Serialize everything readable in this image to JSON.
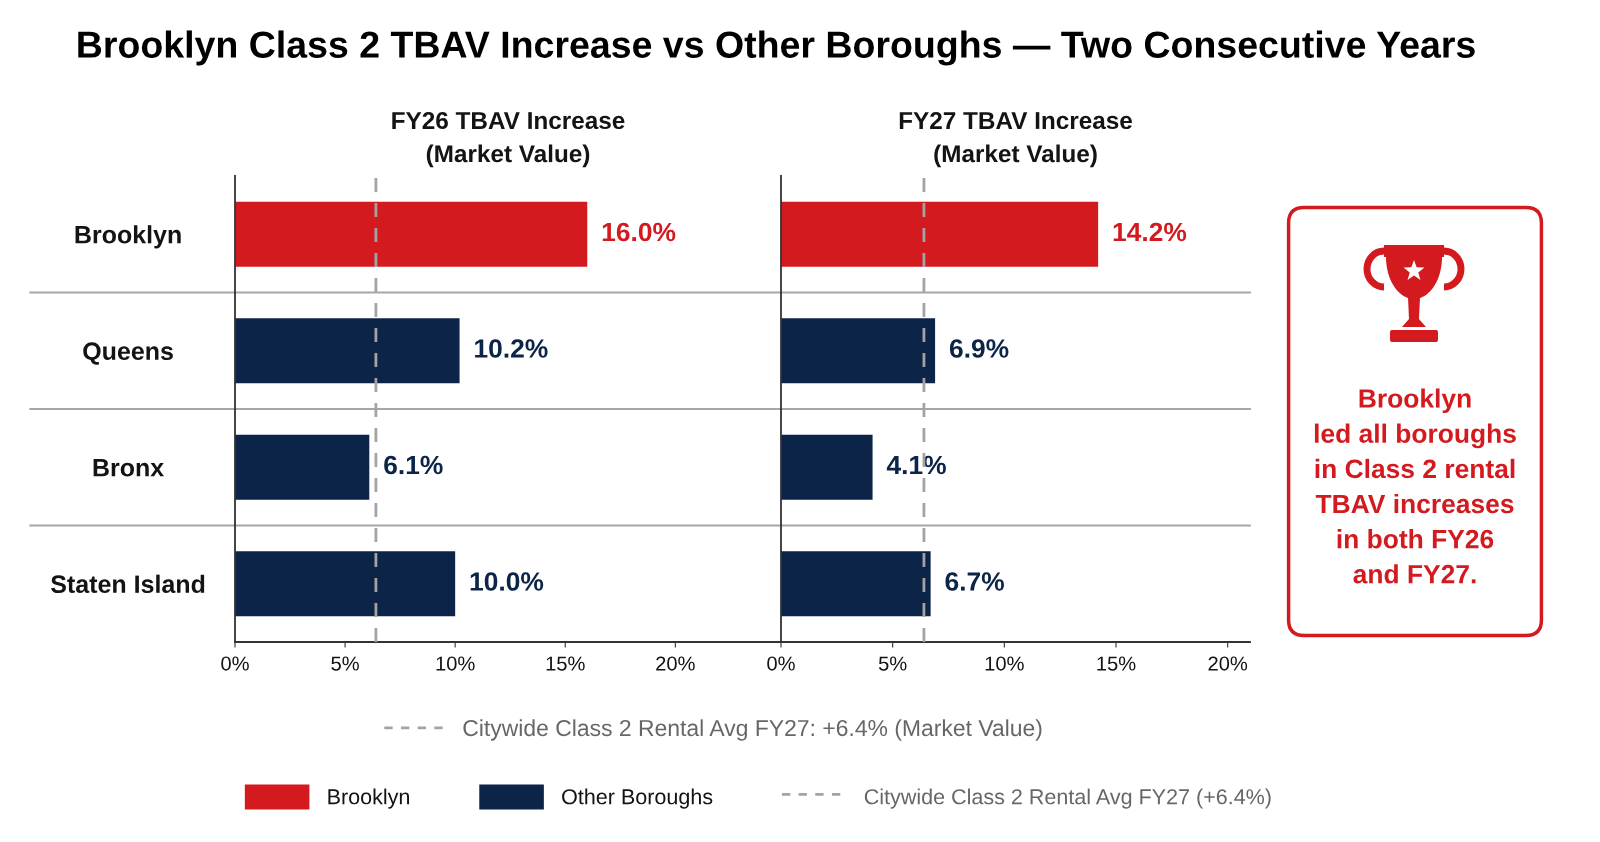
{
  "chart_data": [
    {
      "type": "bar",
      "orientation": "horizontal",
      "title": "Brooklyn Class 2 TBAV Increase vs Other Boroughs — Two Consecutive Years",
      "subtitle": "FY26 TBAV Increase\n(Market Value)",
      "categories": [
        "Brooklyn",
        "Queens",
        "Bronx",
        "Staten Island"
      ],
      "series": [
        {
          "name": "Brooklyn",
          "color": "#d31a1f",
          "values": [
            16.0,
            null,
            null,
            null
          ],
          "value_labels": [
            "16.0%",
            null,
            null,
            null
          ]
        },
        {
          "name": "Other Boroughs",
          "color": "#0c2448",
          "values": [
            null,
            10.2,
            6.1,
            10.0
          ],
          "value_labels": [
            null,
            "10.2%",
            "6.1%",
            "10.0%"
          ]
        }
      ],
      "xlim": [
        0,
        24.8
      ],
      "xticks": [
        {
          "value": 0,
          "label": "0%"
        },
        {
          "value": 5,
          "label": "5%"
        },
        {
          "value": 10,
          "label": "10%"
        },
        {
          "value": 15,
          "label": "15%"
        },
        {
          "value": 20,
          "label": "20%"
        }
      ],
      "ref_lines": [
        {
          "axis": "x",
          "value": 6.4,
          "label": "Citywide Class 2 Rental Avg FY27 (+6.4%)",
          "color": "#a3a3a3",
          "line_style": "dashed"
        }
      ],
      "grid": "y",
      "legend": "bottom"
    },
    {
      "type": "bar",
      "orientation": "horizontal",
      "subtitle": "FY27 TBAV Increase\n(Market Value)",
      "categories": [
        null,
        null,
        null,
        null
      ],
      "series": [
        {
          "color": "#d31a1f",
          "values": [
            14.2,
            null,
            null,
            null
          ],
          "value_labels": [
            "14.2%",
            null,
            null,
            null
          ]
        },
        {
          "color": "#0c2448",
          "values": [
            null,
            6.9,
            4.1,
            6.7
          ],
          "value_labels": [
            null,
            "6.9%",
            "4.1%",
            "6.7%"
          ]
        }
      ],
      "xlim": [
        0,
        21
      ],
      "xticks": [
        {
          "value": 0,
          "label": "0%"
        },
        {
          "value": 5,
          "label": "5%"
        },
        {
          "value": 10,
          "label": "10%"
        },
        {
          "value": 15,
          "label": "15%"
        },
        {
          "value": 20,
          "label": "20%"
        }
      ],
      "ref_lines": [
        {
          "axis": "x",
          "value": 6.4,
          "label": "Citywide Class 2 Rental Avg FY27: +6.4% (Market Value)",
          "color": "#a3a3a3",
          "line_style": "dashed"
        }
      ],
      "grid": "y",
      "tick_labels": "x"
    },
    {
      "type": "other",
      "annotations": [
        "Brooklyn\nled all boroughs\nin Class 2 rental\nTBAV increases\nin both FY26\nand FY27."
      ]
    }
  ]
}
